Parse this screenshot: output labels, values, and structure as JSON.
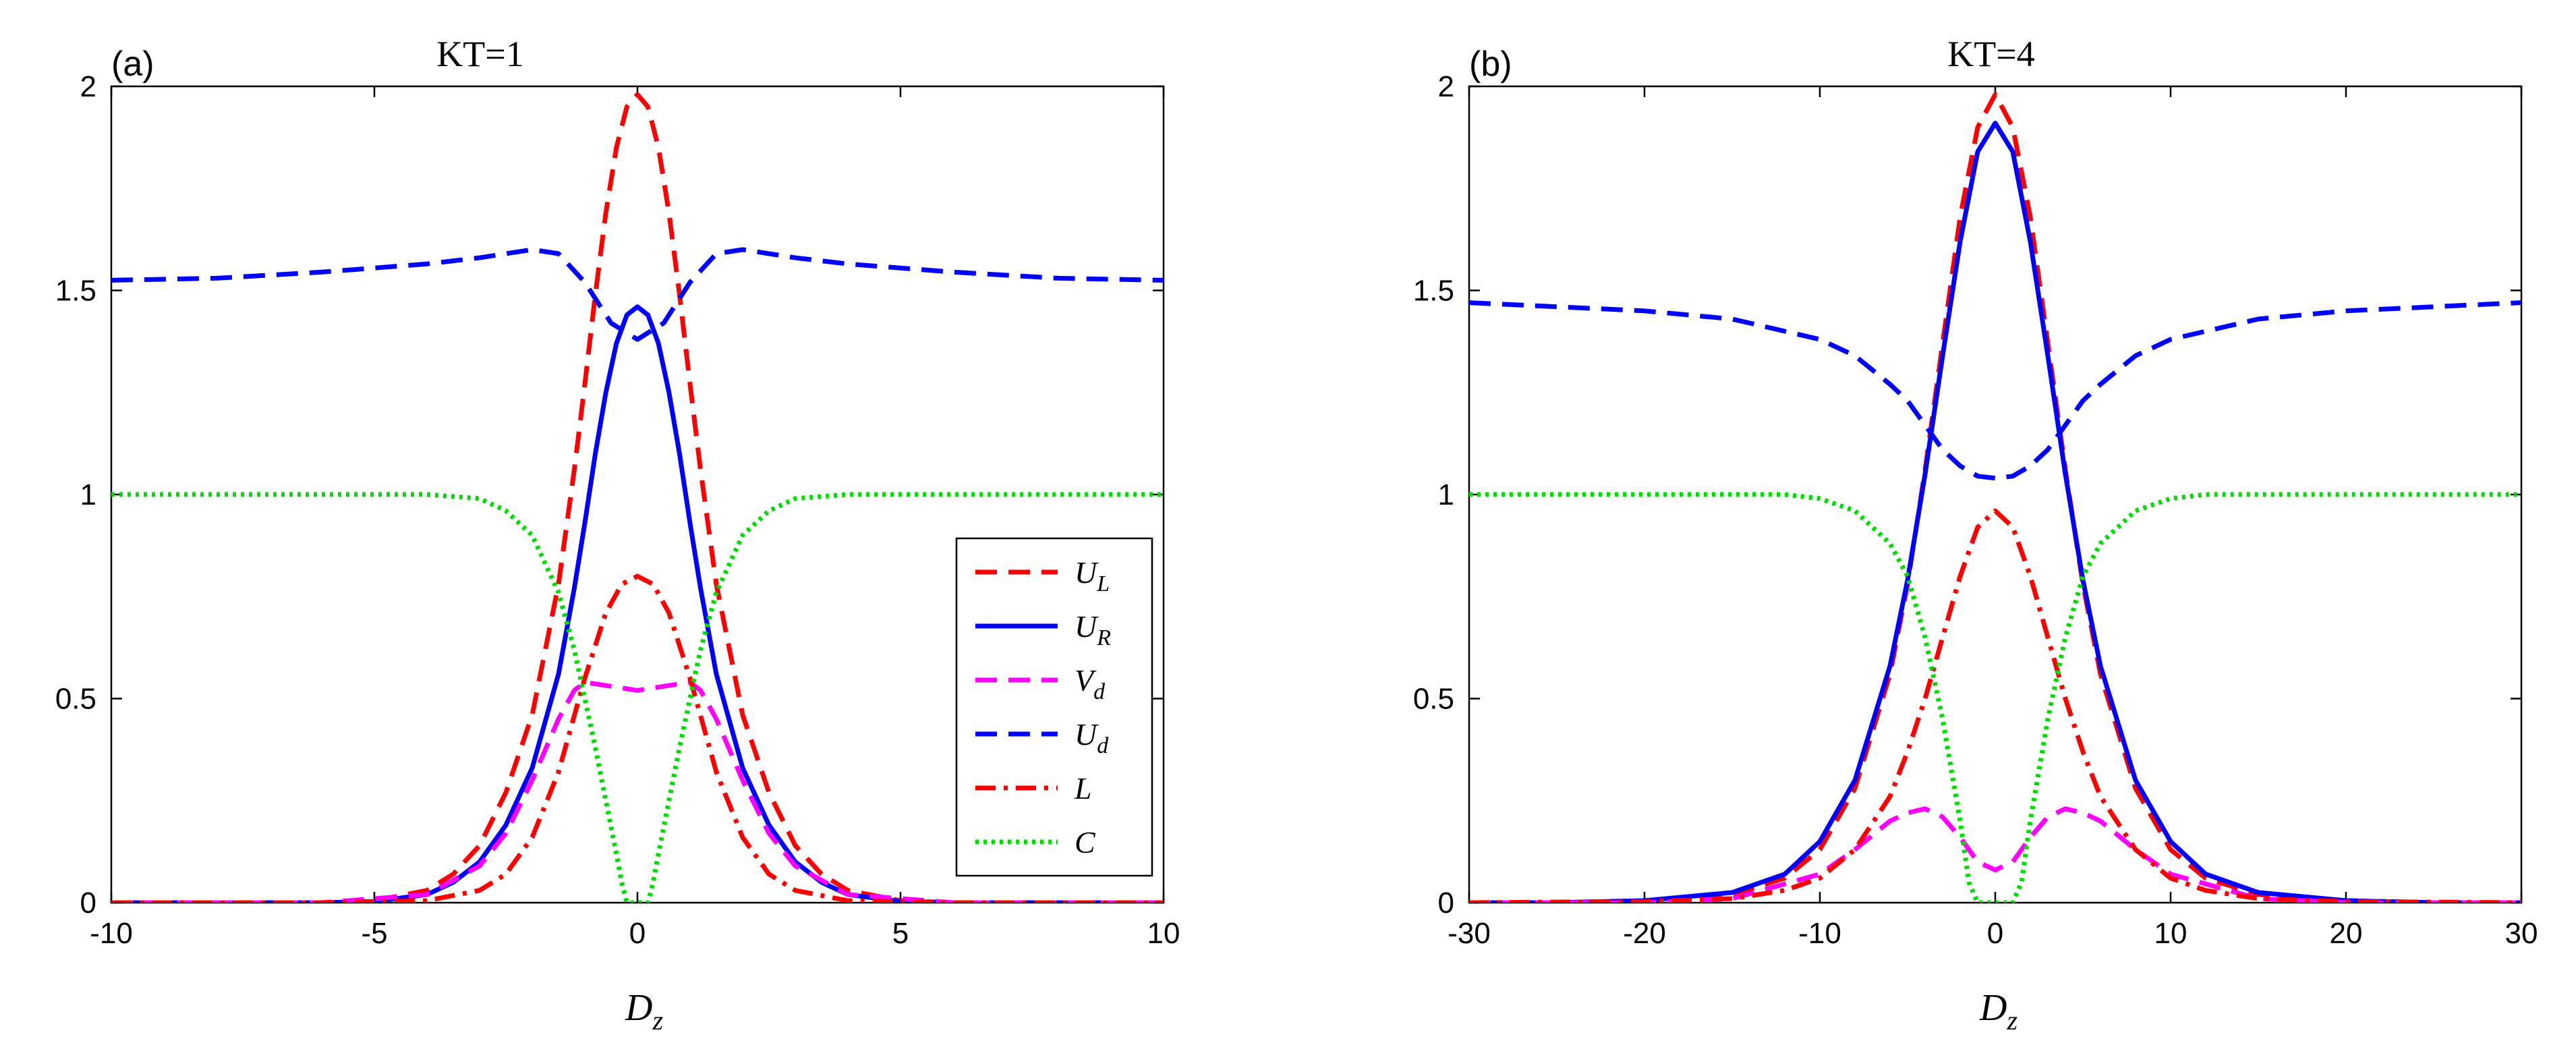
{
  "chart_data": [
    {
      "type": "line",
      "panel_label": "(a)",
      "title": "KT=1",
      "xlabel": {
        "base": "D",
        "sub": "z"
      },
      "ylabel": "",
      "xlim": [
        -10,
        10
      ],
      "ylim": [
        0,
        2
      ],
      "xticks": [
        -10,
        -5,
        0,
        5,
        10
      ],
      "xtick_labels": [
        "-10",
        "-5",
        "0",
        "5",
        "10"
      ],
      "yticks": [
        0,
        0.5,
        1,
        1.5,
        2
      ],
      "ytick_labels": [
        "0",
        "0.5",
        "1",
        "1.5",
        "2"
      ],
      "grid": false,
      "legend": {
        "location": "lower-right"
      },
      "series": [
        {
          "name": "U_L",
          "label_base": "U",
          "label_sub": "L",
          "color": "#ff0000",
          "style": "dashed",
          "x": [
            -10,
            -8,
            -6,
            -5,
            -4,
            -3.5,
            -3,
            -2.5,
            -2,
            -1.5,
            -1.2,
            -1,
            -0.8,
            -0.6,
            -0.4,
            -0.2,
            0,
            0.2,
            0.4,
            0.6,
            0.8,
            1,
            1.2,
            1.5,
            2,
            2.5,
            3,
            3.5,
            4,
            5,
            6,
            8,
            10
          ],
          "y": [
            0,
            0,
            0,
            0.005,
            0.03,
            0.07,
            0.14,
            0.27,
            0.46,
            0.78,
            1.06,
            1.27,
            1.49,
            1.69,
            1.85,
            1.95,
            1.98,
            1.95,
            1.85,
            1.69,
            1.49,
            1.27,
            1.06,
            0.78,
            0.46,
            0.27,
            0.14,
            0.07,
            0.03,
            0.005,
            0,
            0,
            0
          ]
        },
        {
          "name": "U_R",
          "label_base": "U",
          "label_sub": "R",
          "color": "#0000ff",
          "style": "solid",
          "x": [
            -10,
            -8,
            -6,
            -5,
            -4,
            -3.5,
            -3,
            -2.5,
            -2,
            -1.5,
            -1.2,
            -1,
            -0.8,
            -0.6,
            -0.4,
            -0.2,
            0,
            0.2,
            0.4,
            0.6,
            0.8,
            1,
            1.2,
            1.5,
            2,
            2.5,
            3,
            3.5,
            4,
            5,
            6,
            8,
            10
          ],
          "y": [
            0,
            0,
            0,
            0.003,
            0.02,
            0.05,
            0.1,
            0.19,
            0.33,
            0.56,
            0.77,
            0.93,
            1.1,
            1.25,
            1.37,
            1.44,
            1.46,
            1.44,
            1.37,
            1.25,
            1.1,
            0.93,
            0.77,
            0.56,
            0.33,
            0.19,
            0.1,
            0.05,
            0.02,
            0.003,
            0,
            0,
            0
          ]
        },
        {
          "name": "V_d",
          "label_base": "V",
          "label_sub": "d",
          "color": "#ff00ff",
          "style": "dashed",
          "x": [
            -10,
            -6,
            -4,
            -3,
            -2.5,
            -2,
            -1.5,
            -1.2,
            -1,
            -0.5,
            0,
            0.5,
            1,
            1.2,
            1.5,
            2,
            2.5,
            3,
            4,
            6,
            10
          ],
          "y": [
            0,
            0,
            0.02,
            0.09,
            0.17,
            0.3,
            0.45,
            0.52,
            0.54,
            0.53,
            0.52,
            0.53,
            0.54,
            0.52,
            0.45,
            0.3,
            0.17,
            0.09,
            0.02,
            0,
            0
          ]
        },
        {
          "name": "U_d",
          "label_base": "U",
          "label_sub": "d",
          "color": "#0000ff",
          "style": "dashed",
          "x": [
            -10,
            -8,
            -6,
            -4,
            -3,
            -2.5,
            -2,
            -1.5,
            -1,
            -0.5,
            0,
            0.5,
            1,
            1.5,
            2,
            2.5,
            3,
            4,
            6,
            8,
            10
          ],
          "y": [
            1.525,
            1.53,
            1.545,
            1.565,
            1.58,
            1.59,
            1.6,
            1.59,
            1.52,
            1.42,
            1.38,
            1.42,
            1.52,
            1.59,
            1.6,
            1.59,
            1.58,
            1.565,
            1.545,
            1.53,
            1.525
          ]
        },
        {
          "name": "L",
          "label_base": "L",
          "label_sub": "",
          "color": "#ff0000",
          "style": "dashdot",
          "x": [
            -10,
            -6,
            -4,
            -3,
            -2.5,
            -2,
            -1.5,
            -1,
            -0.6,
            -0.3,
            0,
            0.3,
            0.6,
            1,
            1.5,
            2,
            2.5,
            3,
            4,
            6,
            10
          ],
          "y": [
            0,
            0,
            0.005,
            0.03,
            0.07,
            0.16,
            0.32,
            0.55,
            0.71,
            0.78,
            0.8,
            0.78,
            0.71,
            0.55,
            0.32,
            0.16,
            0.07,
            0.03,
            0.005,
            0,
            0
          ]
        },
        {
          "name": "C",
          "label_base": "C",
          "label_sub": "",
          "color": "#00dd00",
          "style": "dotted",
          "x": [
            -10,
            -4,
            -3,
            -2.5,
            -2,
            -1.5,
            -1.2,
            -1,
            -0.8,
            -0.6,
            -0.4,
            -0.3,
            -0.2,
            0,
            0.2,
            0.3,
            0.4,
            0.6,
            0.8,
            1,
            1.2,
            1.5,
            2,
            2.5,
            3,
            4,
            10
          ],
          "y": [
            1,
            1,
            0.99,
            0.96,
            0.9,
            0.76,
            0.62,
            0.5,
            0.38,
            0.25,
            0.12,
            0.05,
            0,
            0,
            0,
            0.05,
            0.12,
            0.25,
            0.38,
            0.5,
            0.62,
            0.76,
            0.9,
            0.96,
            0.99,
            1,
            1
          ]
        }
      ]
    },
    {
      "type": "line",
      "panel_label": "(b)",
      "title": "KT=4",
      "xlabel": {
        "base": "D",
        "sub": "z"
      },
      "ylabel": "",
      "xlim": [
        -30,
        30
      ],
      "ylim": [
        0,
        2
      ],
      "xticks": [
        -30,
        -20,
        -10,
        0,
        10,
        20,
        30
      ],
      "xtick_labels": [
        "-30",
        "-20",
        "-10",
        "0",
        "10",
        "20",
        "30"
      ],
      "yticks": [
        0,
        0.5,
        1,
        1.5,
        2
      ],
      "ytick_labels": [
        "0",
        "0.5",
        "1",
        "1.5",
        "2"
      ],
      "grid": false,
      "legend": {
        "location": "none"
      },
      "series": [
        {
          "name": "U_L",
          "color": "#ff0000",
          "style": "dashed",
          "x": [
            -30,
            -25,
            -20,
            -15,
            -12,
            -10,
            -8,
            -6,
            -5,
            -4,
            -3,
            -2,
            -1,
            0,
            1,
            2,
            3,
            4,
            5,
            6,
            8,
            10,
            12,
            15,
            20,
            25,
            30
          ],
          "y": [
            0,
            0,
            0.005,
            0.02,
            0.06,
            0.13,
            0.28,
            0.56,
            0.78,
            1.06,
            1.37,
            1.68,
            1.9,
            1.98,
            1.9,
            1.68,
            1.37,
            1.06,
            0.78,
            0.56,
            0.28,
            0.13,
            0.06,
            0.02,
            0.005,
            0,
            0
          ]
        },
        {
          "name": "U_R",
          "color": "#0000ff",
          "style": "solid",
          "x": [
            -30,
            -25,
            -20,
            -15,
            -12,
            -10,
            -8,
            -6,
            -5,
            -4,
            -3,
            -2,
            -1,
            0,
            1,
            2,
            3,
            4,
            5,
            6,
            8,
            10,
            12,
            15,
            20,
            25,
            30
          ],
          "y": [
            0,
            0,
            0.005,
            0.025,
            0.07,
            0.15,
            0.3,
            0.58,
            0.79,
            1.05,
            1.34,
            1.62,
            1.84,
            1.91,
            1.84,
            1.62,
            1.34,
            1.05,
            0.79,
            0.58,
            0.3,
            0.15,
            0.07,
            0.025,
            0.005,
            0,
            0
          ]
        },
        {
          "name": "V_d",
          "color": "#ff00ff",
          "style": "dashed",
          "x": [
            -30,
            -20,
            -15,
            -10,
            -8,
            -6,
            -5,
            -4,
            -3,
            -2,
            -1,
            0,
            1,
            2,
            3,
            4,
            5,
            6,
            8,
            10,
            15,
            20,
            30
          ],
          "y": [
            0,
            0,
            0.01,
            0.07,
            0.13,
            0.2,
            0.22,
            0.23,
            0.21,
            0.16,
            0.1,
            0.08,
            0.1,
            0.16,
            0.21,
            0.23,
            0.22,
            0.2,
            0.13,
            0.07,
            0.01,
            0,
            0
          ]
        },
        {
          "name": "U_d",
          "color": "#0000ff",
          "style": "dashed",
          "x": [
            -30,
            -25,
            -20,
            -15,
            -10,
            -8,
            -6,
            -5,
            -4,
            -3,
            -2,
            -1,
            0,
            1,
            2,
            3,
            4,
            5,
            6,
            8,
            10,
            15,
            20,
            25,
            30
          ],
          "y": [
            1.47,
            1.46,
            1.45,
            1.43,
            1.38,
            1.34,
            1.27,
            1.23,
            1.17,
            1.11,
            1.07,
            1.045,
            1.04,
            1.045,
            1.07,
            1.11,
            1.17,
            1.23,
            1.27,
            1.34,
            1.38,
            1.43,
            1.45,
            1.46,
            1.47
          ]
        },
        {
          "name": "L",
          "color": "#ff0000",
          "style": "dashdot",
          "x": [
            -30,
            -20,
            -15,
            -12,
            -10,
            -8,
            -6,
            -5,
            -4,
            -3,
            -2,
            -1,
            0,
            1,
            2,
            3,
            4,
            5,
            6,
            8,
            10,
            12,
            15,
            20,
            30
          ],
          "y": [
            0,
            0.003,
            0.01,
            0.03,
            0.06,
            0.13,
            0.26,
            0.37,
            0.5,
            0.65,
            0.8,
            0.92,
            0.96,
            0.92,
            0.8,
            0.65,
            0.5,
            0.37,
            0.26,
            0.13,
            0.06,
            0.03,
            0.01,
            0.003,
            0
          ]
        },
        {
          "name": "C",
          "color": "#00dd00",
          "style": "dotted",
          "x": [
            -30,
            -12,
            -10,
            -8,
            -6,
            -5,
            -4,
            -3,
            -2,
            -1.5,
            -1,
            0,
            1,
            1.5,
            2,
            3,
            4,
            5,
            6,
            8,
            10,
            12,
            30
          ],
          "y": [
            1,
            1,
            0.99,
            0.96,
            0.88,
            0.8,
            0.65,
            0.45,
            0.2,
            0.05,
            0,
            0,
            0,
            0.05,
            0.2,
            0.45,
            0.65,
            0.8,
            0.88,
            0.96,
            0.99,
            1,
            1
          ]
        }
      ]
    }
  ]
}
